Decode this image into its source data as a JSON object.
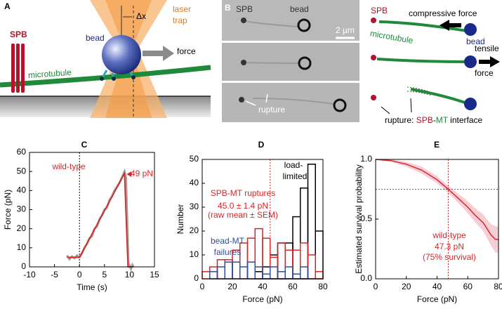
{
  "panel_a": {
    "label": "A",
    "spb": "SPB",
    "bead": "bead",
    "microtubule": "microtubule",
    "laser_trap": [
      "laser",
      "trap"
    ],
    "delta_x": "Δx",
    "force": "force"
  },
  "panel_b": {
    "label": "B",
    "spb": "SPB",
    "bead": "bead",
    "scale_bar": "2 µm",
    "rupture": "rupture",
    "diagram": {
      "spb": "SPB",
      "compressive_force": "compressive force",
      "microtubule": "microtubule",
      "bead": "bead",
      "tensile_force": [
        "tensile",
        "force"
      ],
      "rupture_prefix": "rupture: ",
      "rupture_spb": "SPB",
      "rupture_dash": "-",
      "rupture_mt": "MT",
      "rupture_suffix": " interface"
    }
  },
  "chart_data": [
    {
      "type": "line",
      "label": "C",
      "x_label": "Time (s)",
      "y_label": "Force (pN)",
      "xlim": [
        -10,
        15
      ],
      "xticks": [
        -10,
        -5,
        0,
        5,
        10,
        15
      ],
      "ylim": [
        0,
        60
      ],
      "yticks": [
        0,
        10,
        20,
        30,
        40,
        50,
        60
      ],
      "xref": 0,
      "yref": 0,
      "annotations": [
        {
          "text": "wild-type",
          "color": "#d62728"
        },
        {
          "text": "49 pN",
          "color": "#d62728"
        }
      ],
      "series": [
        {
          "color": "#a0a0a0",
          "x": [
            -2.5,
            -2,
            -1.5,
            -1,
            -0.5,
            0,
            0.5,
            1,
            1.5,
            2,
            2.5,
            3,
            3.5,
            4,
            4.5,
            5,
            5.5,
            6,
            6.5,
            7,
            7.5,
            8,
            8.5,
            9,
            9.3,
            9.6,
            9.8,
            10,
            10.3,
            10.6,
            10.8
          ],
          "values": [
            6,
            4,
            5.5,
            4.5,
            6,
            5,
            7,
            10,
            12,
            15,
            16,
            20,
            21,
            25,
            27,
            30,
            31,
            35,
            37,
            40,
            42,
            44,
            47,
            50,
            47,
            20,
            2,
            1,
            -1,
            1,
            0
          ]
        },
        {
          "color": "#d62728",
          "x": [
            -2.5,
            0,
            9,
            9.7,
            10.8
          ],
          "values": [
            5,
            5,
            49,
            0,
            0
          ]
        }
      ]
    },
    {
      "type": "histogram",
      "label": "D",
      "x_label": "Force (pN)",
      "y_label": "Number",
      "xlim": [
        0,
        80
      ],
      "xticks": [
        0,
        20,
        40,
        60,
        80
      ],
      "ylim": [
        0,
        50
      ],
      "yticks": [
        0,
        10,
        20,
        30,
        40,
        50
      ],
      "mean_line": 45.0,
      "bins": [
        0,
        5,
        10,
        15,
        20,
        25,
        30,
        35,
        40,
        45,
        50,
        55,
        60,
        65,
        70,
        75,
        80
      ],
      "annotations": [
        {
          "text": "load-",
          "color": "#000000"
        },
        {
          "text": "limited",
          "color": "#000000"
        },
        {
          "text": "SPB-MT ruptures",
          "color": "#d62728"
        },
        {
          "text": "45.0 ± 1.4 pN",
          "color": "#d62728"
        },
        {
          "text": "(raw mean ± SEM)",
          "color": "#d62728"
        },
        {
          "text": "bead-MT",
          "color": "#2b4ea0"
        },
        {
          "text": "failures",
          "color": "#2b4ea0"
        }
      ],
      "series": [
        {
          "color": "#000000",
          "values": [
            0,
            0,
            0,
            0,
            0,
            0,
            0,
            3,
            5,
            10,
            15,
            15,
            26,
            38,
            48,
            20
          ]
        },
        {
          "color": "#d62728",
          "values": [
            3,
            5,
            8,
            8,
            12,
            15,
            17,
            21,
            17,
            9,
            15,
            12,
            12,
            15,
            10,
            3
          ]
        },
        {
          "color": "#2b4ea0",
          "values": [
            0,
            3,
            5,
            7,
            7,
            5,
            7,
            5,
            2,
            5,
            3,
            5,
            2,
            5,
            0,
            0
          ]
        }
      ]
    },
    {
      "type": "survival",
      "label": "E",
      "x_label": "Force (pN)",
      "y_label": "Estimated survival probability",
      "xlim": [
        0,
        80
      ],
      "xticks": [
        0,
        20,
        40,
        60,
        80
      ],
      "ylim": [
        0,
        1
      ],
      "yticks": [
        {
          "value": 0,
          "label": "0.0"
        },
        {
          "value": 0.5,
          "label": "0.5"
        },
        {
          "value": 1,
          "label": "1.0"
        }
      ],
      "ref_x": 47.3,
      "ref_y": 0.75,
      "annotations": [
        {
          "text": "wild-type",
          "color": "#d62728"
        },
        {
          "text": "47.3 pN",
          "color": "#d62728"
        },
        {
          "text": "(75% survival)",
          "color": "#d62728"
        }
      ],
      "x": [
        0,
        10,
        20,
        30,
        40,
        47.3,
        55,
        60,
        65,
        70,
        75,
        78,
        80
      ],
      "values": [
        1,
        0.99,
        0.96,
        0.91,
        0.83,
        0.75,
        0.66,
        0.6,
        0.53,
        0.47,
        0.37,
        0.33,
        0.33
      ],
      "lower": [
        1,
        0.98,
        0.94,
        0.88,
        0.8,
        0.72,
        0.62,
        0.55,
        0.47,
        0.4,
        0.28,
        0.22,
        0.22
      ],
      "upper": [
        1,
        1,
        0.98,
        0.94,
        0.86,
        0.78,
        0.7,
        0.65,
        0.59,
        0.54,
        0.46,
        0.44,
        0.44
      ],
      "color": "#d62728",
      "band_color": "#f4c2cc"
    }
  ]
}
